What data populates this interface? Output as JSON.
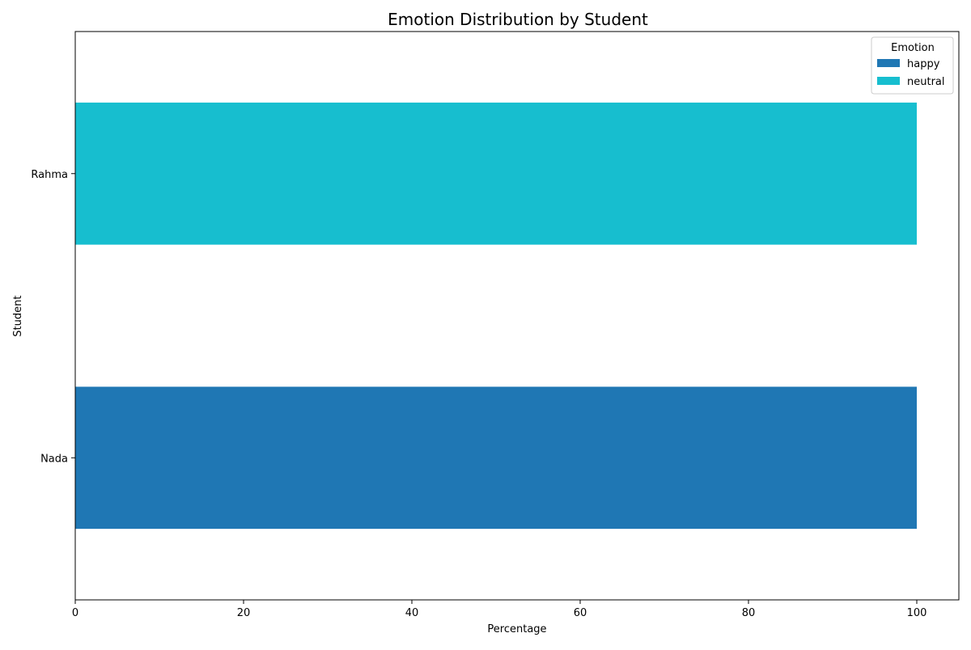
{
  "chart_data": {
    "type": "bar",
    "orientation": "horizontal",
    "stacked": true,
    "title": "Emotion Distribution by Student",
    "xlabel": "Percentage",
    "ylabel": "Student",
    "xlim": [
      0,
      105
    ],
    "xticks": [
      0,
      20,
      40,
      60,
      80,
      100
    ],
    "categories": [
      "Nada",
      "Rahma"
    ],
    "series": [
      {
        "name": "happy",
        "color": "#1f77b4",
        "values": [
          100,
          0
        ]
      },
      {
        "name": "neutral",
        "color": "#17becf",
        "values": [
          0,
          100
        ]
      }
    ],
    "legend": {
      "title": "Emotion",
      "position": "top-right"
    },
    "grid": false
  }
}
